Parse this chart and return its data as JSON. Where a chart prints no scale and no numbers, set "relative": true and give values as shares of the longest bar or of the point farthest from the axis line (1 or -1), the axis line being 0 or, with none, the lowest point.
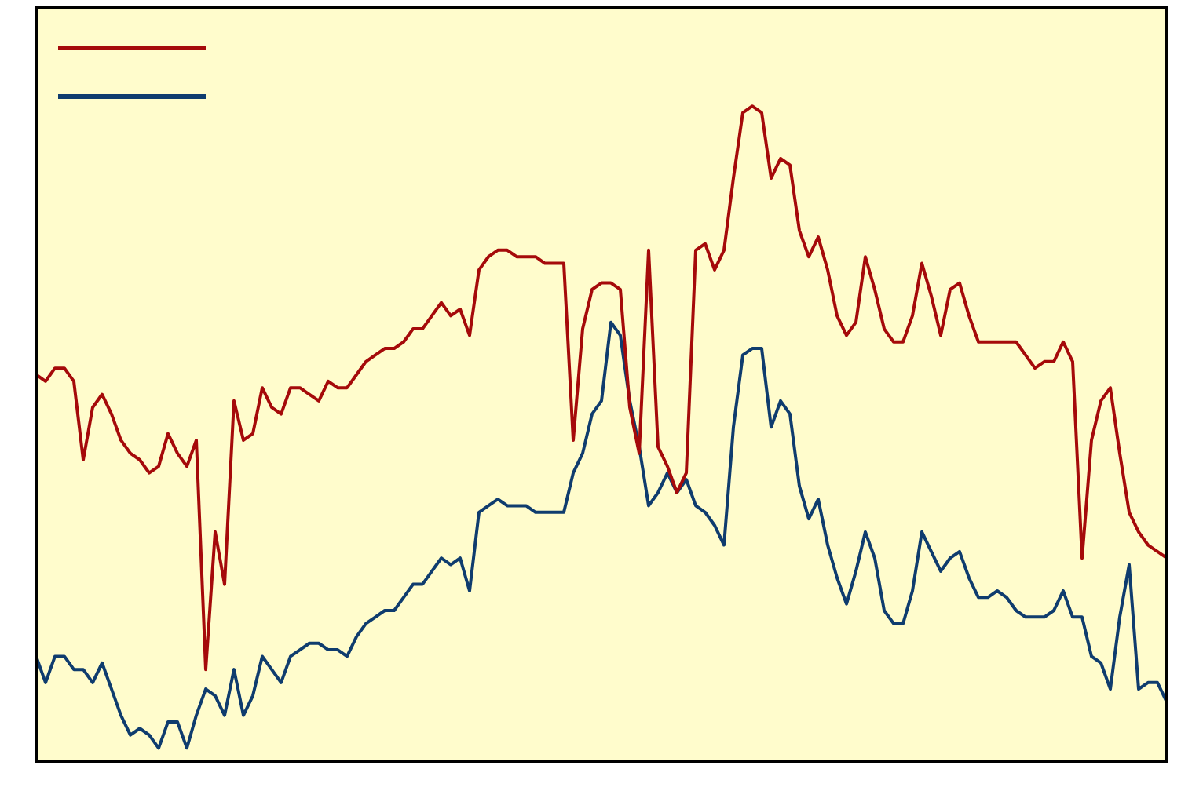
{
  "chart_data": {
    "type": "line",
    "relative": true,
    "marker": "none",
    "line_style": "solid",
    "grid": false,
    "categories": [
      null,
      null,
      null,
      null,
      null,
      null,
      null,
      null,
      null,
      null,
      null,
      null,
      null,
      null,
      null,
      null,
      null,
      null,
      null,
      null,
      null,
      null,
      null,
      null,
      null,
      null,
      null,
      null,
      null,
      null,
      null,
      null,
      null,
      null,
      null,
      null,
      null,
      null,
      null,
      null,
      null,
      null,
      null,
      null,
      null,
      null,
      null,
      null,
      null,
      null,
      null,
      null,
      null,
      null,
      null,
      null,
      null,
      null,
      null,
      null,
      null,
      null,
      null,
      null,
      null,
      null,
      null,
      null,
      null,
      null,
      null,
      null,
      null,
      null,
      null,
      null,
      null,
      null,
      null,
      null,
      null,
      null,
      null,
      null,
      null,
      null,
      null,
      null,
      null,
      null,
      null,
      null,
      null,
      null,
      null,
      null,
      null,
      null,
      null,
      null,
      null,
      null,
      null,
      null,
      null,
      null,
      null,
      null,
      null,
      null,
      null,
      null,
      null,
      null,
      null,
      null,
      null,
      null,
      null,
      null,
      null
    ],
    "series": [
      {
        "color": "#a50a0a",
        "values": [
          0.59,
          0.58,
          0.6,
          0.6,
          0.58,
          0.46,
          0.54,
          0.56,
          0.53,
          0.49,
          0.47,
          0.46,
          0.44,
          0.45,
          0.5,
          0.47,
          0.45,
          0.49,
          0.14,
          0.35,
          0.27,
          0.55,
          0.49,
          0.5,
          0.57,
          0.54,
          0.53,
          0.57,
          0.57,
          0.56,
          0.55,
          0.58,
          0.57,
          0.57,
          0.59,
          0.61,
          0.62,
          0.63,
          0.63,
          0.64,
          0.66,
          0.66,
          0.68,
          0.7,
          0.68,
          0.69,
          0.65,
          0.75,
          0.77,
          0.78,
          0.78,
          0.77,
          0.77,
          0.77,
          0.76,
          0.76,
          0.76,
          0.49,
          0.66,
          0.72,
          0.73,
          0.73,
          0.72,
          0.54,
          0.47,
          0.78,
          0.48,
          0.45,
          0.41,
          0.44,
          0.78,
          0.79,
          0.75,
          0.78,
          0.89,
          0.99,
          1,
          0.99,
          0.89,
          0.92,
          0.91,
          0.81,
          0.77,
          0.8,
          0.75,
          0.68,
          0.65,
          0.67,
          0.77,
          0.72,
          0.66,
          0.64,
          0.64,
          0.68,
          0.76,
          0.71,
          0.65,
          0.72,
          0.73,
          0.68,
          0.64,
          0.64,
          0.64,
          0.64,
          0.64,
          0.62,
          0.6,
          0.61,
          0.61,
          0.64,
          0.61,
          0.31,
          0.49,
          0.55,
          0.57,
          0.47,
          0.38,
          0.35,
          0.33,
          0.32,
          0.31
        ]
      },
      {
        "color": "#0f3c6e",
        "values": [
          0.16,
          0.12,
          0.16,
          0.16,
          0.14,
          0.14,
          0.12,
          0.15,
          0.11,
          0.07,
          0.04,
          0.05,
          0.04,
          0.02,
          0.06,
          0.06,
          0.02,
          0.07,
          0.11,
          0.1,
          0.07,
          0.14,
          0.07,
          0.1,
          0.16,
          0.14,
          0.12,
          0.16,
          0.17,
          0.18,
          0.18,
          0.17,
          0.17,
          0.16,
          0.19,
          0.21,
          0.22,
          0.23,
          0.23,
          0.25,
          0.27,
          0.27,
          0.29,
          0.31,
          0.3,
          0.31,
          0.26,
          0.38,
          0.39,
          0.4,
          0.39,
          0.39,
          0.39,
          0.38,
          0.38,
          0.38,
          0.38,
          0.44,
          0.47,
          0.53,
          0.55,
          0.67,
          0.65,
          0.55,
          0.48,
          0.39,
          0.41,
          0.44,
          0.41,
          0.43,
          0.39,
          0.38,
          0.36,
          0.33,
          0.51,
          0.62,
          0.63,
          0.63,
          0.51,
          0.55,
          0.53,
          0.42,
          0.37,
          0.4,
          0.33,
          0.28,
          0.24,
          0.29,
          0.35,
          0.31,
          0.23,
          0.21,
          0.21,
          0.26,
          0.35,
          0.32,
          0.29,
          0.31,
          0.32,
          0.28,
          0.25,
          0.25,
          0.26,
          0.25,
          0.23,
          0.22,
          0.22,
          0.22,
          0.23,
          0.26,
          0.22,
          0.22,
          0.16,
          0.15,
          0.11,
          0.22,
          0.3,
          0.11,
          0.12,
          0.12,
          0.09
        ]
      }
    ]
  }
}
